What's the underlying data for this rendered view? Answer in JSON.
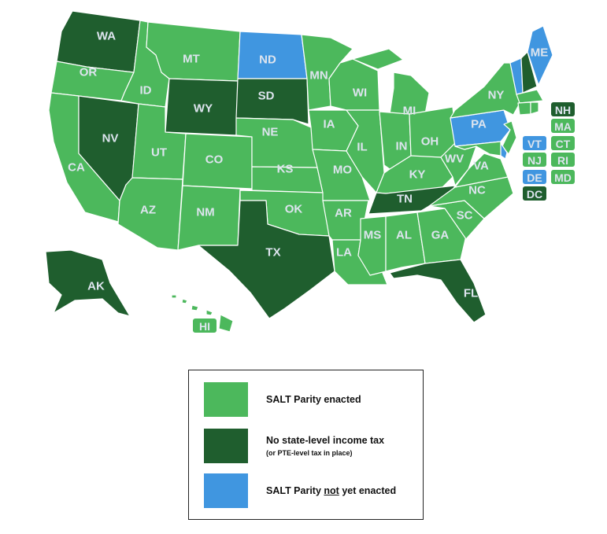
{
  "colors": {
    "enacted": "#4cb85c",
    "no_income_tax": "#1f5e2e",
    "not_enacted": "#4096e0",
    "label_text": "#dde4ee"
  },
  "states": [
    {
      "abbr": "WA",
      "status": "no_income_tax"
    },
    {
      "abbr": "OR",
      "status": "enacted"
    },
    {
      "abbr": "CA",
      "status": "enacted"
    },
    {
      "abbr": "NV",
      "status": "no_income_tax"
    },
    {
      "abbr": "ID",
      "status": "enacted"
    },
    {
      "abbr": "MT",
      "status": "enacted"
    },
    {
      "abbr": "WY",
      "status": "no_income_tax"
    },
    {
      "abbr": "UT",
      "status": "enacted"
    },
    {
      "abbr": "CO",
      "status": "enacted"
    },
    {
      "abbr": "AZ",
      "status": "enacted"
    },
    {
      "abbr": "NM",
      "status": "enacted"
    },
    {
      "abbr": "ND",
      "status": "not_enacted"
    },
    {
      "abbr": "SD",
      "status": "no_income_tax"
    },
    {
      "abbr": "NE",
      "status": "enacted"
    },
    {
      "abbr": "KS",
      "status": "enacted"
    },
    {
      "abbr": "OK",
      "status": "enacted"
    },
    {
      "abbr": "TX",
      "status": "no_income_tax"
    },
    {
      "abbr": "MN",
      "status": "enacted"
    },
    {
      "abbr": "IA",
      "status": "enacted"
    },
    {
      "abbr": "MO",
      "status": "enacted"
    },
    {
      "abbr": "AR",
      "status": "enacted"
    },
    {
      "abbr": "LA",
      "status": "enacted"
    },
    {
      "abbr": "WI",
      "status": "enacted"
    },
    {
      "abbr": "IL",
      "status": "enacted"
    },
    {
      "abbr": "MI",
      "status": "enacted"
    },
    {
      "abbr": "IN",
      "status": "enacted"
    },
    {
      "abbr": "OH",
      "status": "enacted"
    },
    {
      "abbr": "KY",
      "status": "enacted"
    },
    {
      "abbr": "TN",
      "status": "no_income_tax"
    },
    {
      "abbr": "MS",
      "status": "enacted"
    },
    {
      "abbr": "AL",
      "status": "enacted"
    },
    {
      "abbr": "GA",
      "status": "enacted"
    },
    {
      "abbr": "FL",
      "status": "no_income_tax"
    },
    {
      "abbr": "SC",
      "status": "enacted"
    },
    {
      "abbr": "NC",
      "status": "enacted"
    },
    {
      "abbr": "VA",
      "status": "enacted"
    },
    {
      "abbr": "WV",
      "status": "enacted"
    },
    {
      "abbr": "PA",
      "status": "not_enacted"
    },
    {
      "abbr": "NY",
      "status": "enacted"
    },
    {
      "abbr": "NJ",
      "status": "enacted"
    },
    {
      "abbr": "DE",
      "status": "not_enacted"
    },
    {
      "abbr": "MD",
      "status": "enacted"
    },
    {
      "abbr": "VT",
      "status": "not_enacted"
    },
    {
      "abbr": "NH",
      "status": "no_income_tax"
    },
    {
      "abbr": "ME",
      "status": "not_enacted"
    },
    {
      "abbr": "MA",
      "status": "enacted"
    },
    {
      "abbr": "CT",
      "status": "enacted"
    },
    {
      "abbr": "RI",
      "status": "enacted"
    },
    {
      "abbr": "AK",
      "status": "no_income_tax"
    },
    {
      "abbr": "HI",
      "status": "enacted"
    },
    {
      "abbr": "DC",
      "status": "no_income_tax"
    }
  ],
  "legend": {
    "items": [
      {
        "key": "enacted",
        "label": "SALT Parity enacted"
      },
      {
        "key": "no_income_tax",
        "label": "No state-level income tax",
        "sublabel": "(or PTE-level tax in place)"
      },
      {
        "key": "not_enacted",
        "label_pre": "SALT Parity ",
        "label_underline": "not",
        "label_post": " yet enacted"
      }
    ]
  }
}
